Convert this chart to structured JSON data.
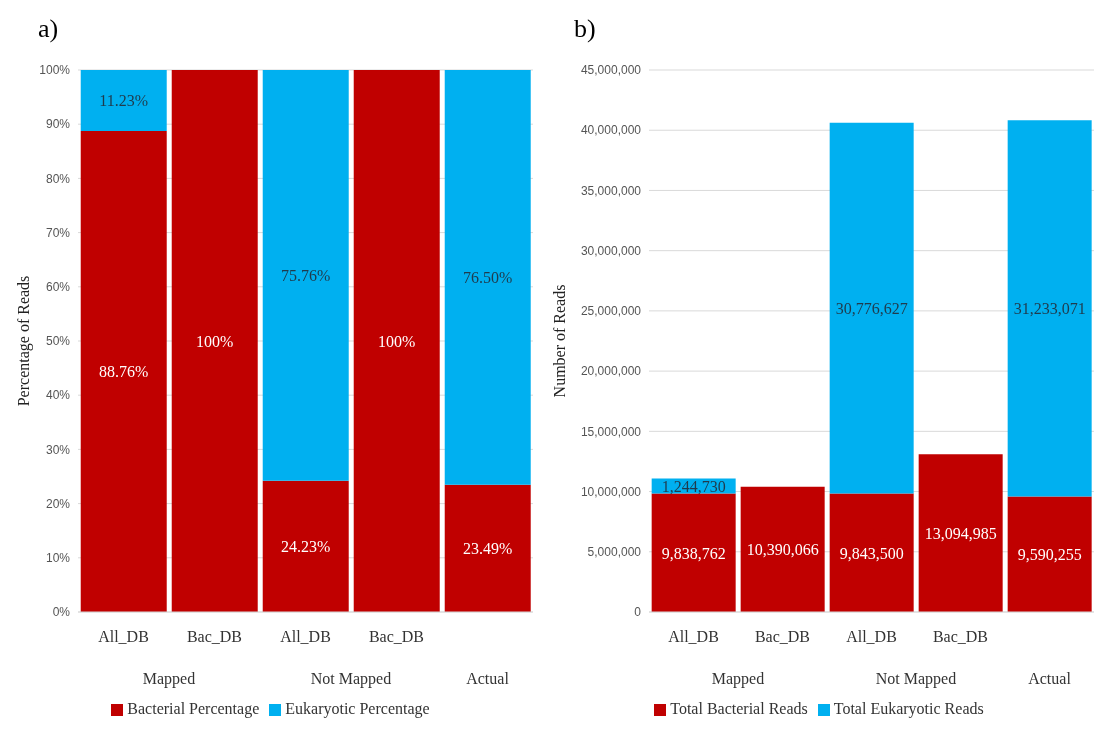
{
  "chart_data": [
    {
      "type": "bar",
      "title": "a)",
      "ylabel": "Percentage of Reads",
      "categories": [
        "All_DB",
        "Bac_DB",
        "All_DB",
        "Bac_DB",
        null
      ],
      "stacked": true,
      "series": [
        {
          "name": "Bacterial Percentage",
          "color": "#c00000",
          "values": [
            88.76,
            100,
            24.23,
            100,
            23.49
          ],
          "value_labels": [
            "88.76%",
            "100%",
            "24.23%",
            "100%",
            "23.49%"
          ]
        },
        {
          "name": "Eukaryotic Percentage",
          "color": "#00b0f0",
          "values": [
            11.23,
            0,
            75.76,
            0,
            76.5
          ],
          "value_labels": [
            "11.23%",
            null,
            "75.76%",
            null,
            "76.50%"
          ]
        }
      ],
      "ylim": [
        0,
        100
      ],
      "yticks": [
        {
          "value": 0,
          "label": "0%"
        },
        {
          "value": 10,
          "label": "10%"
        },
        {
          "value": 20,
          "label": "20%"
        },
        {
          "value": 30,
          "label": "30%"
        },
        {
          "value": 40,
          "label": "40%"
        },
        {
          "value": 50,
          "label": "50%"
        },
        {
          "value": 60,
          "label": "60%"
        },
        {
          "value": 70,
          "label": "70%"
        },
        {
          "value": 80,
          "label": "80%"
        },
        {
          "value": 90,
          "label": "90%"
        },
        {
          "value": 100,
          "label": "100%"
        }
      ],
      "grid": "y",
      "legend": "bottom",
      "annotations": [
        "Mapped",
        "Not Mapped",
        "Actual"
      ]
    },
    {
      "type": "bar",
      "title": "b)",
      "ylabel": "Number of Reads",
      "categories": [
        "All_DB",
        "Bac_DB",
        "All_DB",
        "Bac_DB",
        null
      ],
      "stacked": true,
      "series": [
        {
          "name": "Total Bacterial Reads",
          "color": "#c00000",
          "values": [
            9838762,
            10390066,
            9843500,
            13094985,
            9590255
          ],
          "value_labels": [
            "9,838,762",
            "10,390,066",
            "9,843,500",
            "13,094,985",
            "9,590,255"
          ]
        },
        {
          "name": "Total Eukaryotic Reads",
          "color": "#00b0f0",
          "values": [
            1244730,
            0,
            30776627,
            0,
            31233071
          ],
          "value_labels": [
            "1,244,730",
            null,
            "30,776,627",
            null,
            "31,233,071"
          ]
        }
      ],
      "ylim": [
        0,
        45000000
      ],
      "yticks": [
        0,
        {
          "value": 5000000,
          "label": "5,000,000"
        },
        {
          "value": 10000000,
          "label": "10,000,000"
        },
        {
          "value": 15000000,
          "label": "15,000,000"
        },
        {
          "value": 20000000,
          "label": "20,000,000"
        },
        {
          "value": 25000000,
          "label": "25,000,000"
        },
        {
          "value": 30000000,
          "label": "30,000,000"
        },
        {
          "value": 35000000,
          "label": "35,000,000"
        },
        {
          "value": 40000000,
          "label": "40,000,000"
        },
        {
          "value": 45000000,
          "label": "45,000,000"
        }
      ],
      "grid": "y",
      "legend": "bottom",
      "annotations": [
        "Mapped",
        "Not Mapped",
        "Actual"
      ]
    }
  ]
}
